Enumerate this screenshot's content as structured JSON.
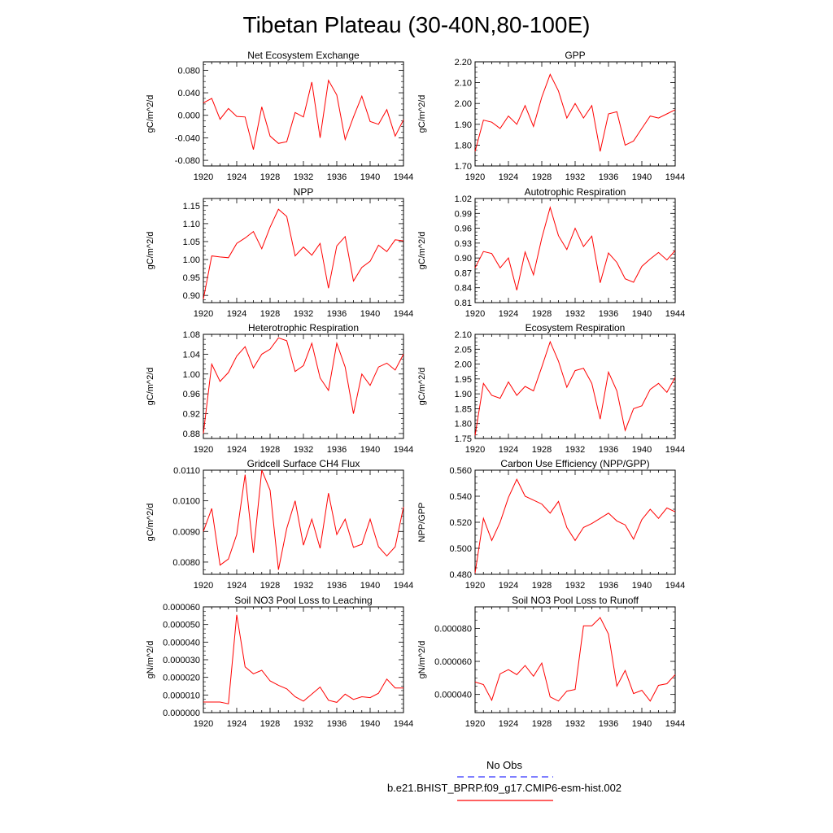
{
  "figure": {
    "title": "Tibetan Plateau (30-40N,80-100E)",
    "legend": [
      {
        "label": "No Obs",
        "color": "#3333ff",
        "dash": "dashed"
      },
      {
        "label": "b.e21.BHIST_BPRP.f09_g17.CMIP6-esm-hist.002",
        "color": "#ff0000",
        "dash": "solid"
      }
    ]
  },
  "chart_data": [
    {
      "type": "line",
      "title": "Net Ecosystem Exchange",
      "ylabel": "gC/m^2/d",
      "xlim": [
        1920,
        1944
      ],
      "ylim": [
        -0.09,
        0.095
      ],
      "xticks": [
        "1920",
        "1924",
        "1928",
        "1932",
        "1936",
        "1940",
        "1944"
      ],
      "yticks": [
        "-0.080",
        "-0.040",
        "0.000",
        "0.040",
        "0.080"
      ],
      "ytick_values": [
        -0.08,
        -0.04,
        0.0,
        0.04,
        0.08
      ],
      "x": [
        1920,
        1921,
        1922,
        1923,
        1924,
        1925,
        1926,
        1927,
        1928,
        1929,
        1930,
        1931,
        1932,
        1933,
        1934,
        1935,
        1936,
        1937,
        1938,
        1939,
        1940,
        1941,
        1942,
        1943,
        1944
      ],
      "series": [
        {
          "color": "#ff0000",
          "values": [
            0.022,
            0.03,
            -0.007,
            0.012,
            -0.002,
            -0.003,
            -0.061,
            0.015,
            -0.037,
            -0.05,
            -0.047,
            0.005,
            -0.003,
            0.059,
            -0.04,
            0.062,
            0.036,
            -0.043,
            -0.003,
            0.034,
            -0.011,
            -0.016,
            0.01,
            -0.037,
            -0.008
          ]
        }
      ]
    },
    {
      "type": "line",
      "title": "GPP",
      "ylabel": "gC/m^2/d",
      "xlim": [
        1920,
        1944
      ],
      "ylim": [
        1.7,
        2.2
      ],
      "xticks": [
        "1920",
        "1924",
        "1928",
        "1932",
        "1936",
        "1940",
        "1944"
      ],
      "yticks": [
        "1.70",
        "1.80",
        "1.90",
        "2.00",
        "2.10",
        "2.20"
      ],
      "ytick_values": [
        1.7,
        1.8,
        1.9,
        2.0,
        2.1,
        2.2
      ],
      "x": [
        1920,
        1921,
        1922,
        1923,
        1924,
        1925,
        1926,
        1927,
        1928,
        1929,
        1930,
        1931,
        1932,
        1933,
        1934,
        1935,
        1936,
        1937,
        1938,
        1939,
        1940,
        1941,
        1942,
        1943,
        1944
      ],
      "series": [
        {
          "color": "#ff0000",
          "values": [
            1.77,
            1.92,
            1.91,
            1.88,
            1.94,
            1.9,
            1.99,
            1.89,
            2.03,
            2.14,
            2.06,
            1.93,
            2.0,
            1.93,
            1.99,
            1.77,
            1.95,
            1.96,
            1.8,
            1.82,
            1.88,
            1.94,
            1.93,
            1.95,
            1.97
          ]
        }
      ]
    },
    {
      "type": "line",
      "title": "NPP",
      "ylabel": "gC/m^2/d",
      "xlim": [
        1920,
        1944
      ],
      "ylim": [
        0.88,
        1.17
      ],
      "xticks": [
        "1920",
        "1924",
        "1928",
        "1932",
        "1936",
        "1940",
        "1944"
      ],
      "yticks": [
        "0.90",
        "0.95",
        "1.00",
        "1.05",
        "1.10",
        "1.15"
      ],
      "ytick_values": [
        0.9,
        0.95,
        1.0,
        1.05,
        1.1,
        1.15
      ],
      "x": [
        1920,
        1921,
        1922,
        1923,
        1924,
        1925,
        1926,
        1927,
        1928,
        1929,
        1930,
        1931,
        1932,
        1933,
        1934,
        1935,
        1936,
        1937,
        1938,
        1939,
        1940,
        1941,
        1942,
        1943,
        1944
      ],
      "series": [
        {
          "color": "#ff0000",
          "values": [
            0.89,
            1.01,
            1.007,
            1.005,
            1.045,
            1.06,
            1.078,
            1.03,
            1.09,
            1.14,
            1.12,
            1.01,
            1.035,
            1.012,
            1.045,
            0.92,
            1.038,
            1.064,
            0.94,
            0.978,
            0.995,
            1.04,
            1.022,
            1.055,
            1.052
          ]
        }
      ]
    },
    {
      "type": "line",
      "title": "Autotrophic Respiration",
      "ylabel": "gC/m^2/d",
      "xlim": [
        1920,
        1944
      ],
      "ylim": [
        0.81,
        1.02
      ],
      "xticks": [
        "1920",
        "1924",
        "1928",
        "1932",
        "1936",
        "1940",
        "1944"
      ],
      "yticks": [
        "0.81",
        "0.84",
        "0.87",
        "0.90",
        "0.93",
        "0.96",
        "0.99",
        "1.02"
      ],
      "ytick_values": [
        0.81,
        0.84,
        0.87,
        0.9,
        0.93,
        0.96,
        0.99,
        1.02
      ],
      "x": [
        1920,
        1921,
        1922,
        1923,
        1924,
        1925,
        1926,
        1927,
        1928,
        1929,
        1930,
        1931,
        1932,
        1933,
        1934,
        1935,
        1936,
        1937,
        1938,
        1939,
        1940,
        1941,
        1942,
        1943,
        1944
      ],
      "series": [
        {
          "color": "#ff0000",
          "values": [
            0.88,
            0.913,
            0.909,
            0.88,
            0.9,
            0.835,
            0.912,
            0.866,
            0.94,
            1.002,
            0.945,
            0.917,
            0.96,
            0.923,
            0.944,
            0.85,
            0.91,
            0.891,
            0.858,
            0.851,
            0.883,
            0.898,
            0.911,
            0.896,
            0.915
          ]
        }
      ]
    },
    {
      "type": "line",
      "title": "Heterotrophic Respiration",
      "ylabel": "gC/m^2/d",
      "xlim": [
        1920,
        1944
      ],
      "ylim": [
        0.87,
        1.08
      ],
      "xticks": [
        "1920",
        "1924",
        "1928",
        "1932",
        "1936",
        "1940",
        "1944"
      ],
      "yticks": [
        "0.88",
        "0.92",
        "0.96",
        "1.00",
        "1.04",
        "1.08"
      ],
      "ytick_values": [
        0.88,
        0.92,
        0.96,
        1.0,
        1.04,
        1.08
      ],
      "x": [
        1920,
        1921,
        1922,
        1923,
        1924,
        1925,
        1926,
        1927,
        1928,
        1929,
        1930,
        1931,
        1932,
        1933,
        1934,
        1935,
        1936,
        1937,
        1938,
        1939,
        1940,
        1941,
        1942,
        1943,
        1944
      ],
      "series": [
        {
          "color": "#ff0000",
          "values": [
            0.88,
            1.02,
            0.985,
            1.003,
            1.036,
            1.055,
            1.012,
            1.04,
            1.05,
            1.073,
            1.067,
            1.005,
            1.017,
            1.062,
            0.992,
            0.967,
            1.062,
            1.014,
            0.92,
            1.0,
            0.977,
            1.014,
            1.022,
            1.008,
            1.04
          ]
        }
      ]
    },
    {
      "type": "line",
      "title": "Ecosystem Respiration",
      "ylabel": "gC/m^2/d",
      "xlim": [
        1920,
        1944
      ],
      "ylim": [
        1.75,
        2.1
      ],
      "xticks": [
        "1920",
        "1924",
        "1928",
        "1932",
        "1936",
        "1940",
        "1944"
      ],
      "yticks": [
        "1.75",
        "1.80",
        "1.85",
        "1.90",
        "1.95",
        "2.00",
        "2.05",
        "2.10"
      ],
      "ytick_values": [
        1.75,
        1.8,
        1.85,
        1.9,
        1.95,
        2.0,
        2.05,
        2.1
      ],
      "x": [
        1920,
        1921,
        1922,
        1923,
        1924,
        1925,
        1926,
        1927,
        1928,
        1929,
        1930,
        1931,
        1932,
        1933,
        1934,
        1935,
        1936,
        1937,
        1938,
        1939,
        1940,
        1941,
        1942,
        1943,
        1944
      ],
      "series": [
        {
          "color": "#ff0000",
          "values": [
            1.76,
            1.935,
            1.895,
            1.885,
            1.94,
            1.895,
            1.925,
            1.91,
            1.99,
            2.075,
            2.01,
            1.922,
            1.978,
            1.986,
            1.935,
            1.815,
            1.973,
            1.91,
            1.777,
            1.85,
            1.86,
            1.915,
            1.935,
            1.905,
            1.955
          ]
        }
      ]
    },
    {
      "type": "line",
      "title": "Gridcell Surface CH4 Flux",
      "ylabel": "gC/m^2/d",
      "xlim": [
        1920,
        1944
      ],
      "ylim": [
        0.0076,
        0.011
      ],
      "xticks": [
        "1920",
        "1924",
        "1928",
        "1932",
        "1936",
        "1940",
        "1944"
      ],
      "yticks": [
        "0.0080",
        "0.0090",
        "0.0100",
        "0.0110"
      ],
      "ytick_values": [
        0.008,
        0.009,
        0.01,
        0.011
      ],
      "x": [
        1920,
        1921,
        1922,
        1923,
        1924,
        1925,
        1926,
        1927,
        1928,
        1929,
        1930,
        1931,
        1932,
        1933,
        1934,
        1935,
        1936,
        1937,
        1938,
        1939,
        1940,
        1941,
        1942,
        1943,
        1944
      ],
      "series": [
        {
          "color": "#ff0000",
          "values": [
            0.009,
            0.00975,
            0.0079,
            0.0081,
            0.0089,
            0.01085,
            0.0083,
            0.011,
            0.01035,
            0.00775,
            0.0091,
            0.01,
            0.00855,
            0.0094,
            0.00845,
            0.01025,
            0.0089,
            0.0094,
            0.00848,
            0.00858,
            0.0094,
            0.0085,
            0.0082,
            0.0085,
            0.0098
          ]
        }
      ]
    },
    {
      "type": "line",
      "title": "Carbon Use Efficiency (NPP/GPP)",
      "ylabel": "NPP/GPP",
      "xlim": [
        1920,
        1944
      ],
      "ylim": [
        0.48,
        0.56
      ],
      "xticks": [
        "1920",
        "1924",
        "1928",
        "1932",
        "1936",
        "1940",
        "1944"
      ],
      "yticks": [
        "0.480",
        "0.500",
        "0.520",
        "0.540",
        "0.560"
      ],
      "ytick_values": [
        0.48,
        0.5,
        0.52,
        0.54,
        0.56
      ],
      "x": [
        1920,
        1921,
        1922,
        1923,
        1924,
        1925,
        1926,
        1927,
        1928,
        1929,
        1930,
        1931,
        1932,
        1933,
        1934,
        1935,
        1936,
        1937,
        1938,
        1939,
        1940,
        1941,
        1942,
        1943,
        1944
      ],
      "series": [
        {
          "color": "#ff0000",
          "values": [
            0.481,
            0.523,
            0.506,
            0.52,
            0.539,
            0.553,
            0.54,
            0.537,
            0.534,
            0.527,
            0.536,
            0.516,
            0.506,
            0.516,
            0.519,
            0.523,
            0.527,
            0.521,
            0.518,
            0.507,
            0.522,
            0.53,
            0.523,
            0.531,
            0.528
          ]
        }
      ]
    },
    {
      "type": "line",
      "title": "Soil NO3 Pool Loss to Leaching",
      "ylabel": "gN/m^2/d",
      "xlim": [
        1920,
        1944
      ],
      "ylim": [
        0.0,
        6e-05
      ],
      "xticks": [
        "1920",
        "1924",
        "1928",
        "1932",
        "1936",
        "1940",
        "1944"
      ],
      "yticks": [
        "0.000000",
        "0.000010",
        "0.000020",
        "0.000030",
        "0.000040",
        "0.000050",
        "0.000060"
      ],
      "ytick_values": [
        0.0,
        1e-05,
        2e-05,
        3e-05,
        4e-05,
        5e-05,
        6e-05
      ],
      "x": [
        1920,
        1921,
        1922,
        1923,
        1924,
        1925,
        1926,
        1927,
        1928,
        1929,
        1930,
        1931,
        1932,
        1933,
        1934,
        1935,
        1936,
        1937,
        1938,
        1939,
        1940,
        1941,
        1942,
        1943,
        1944
      ],
      "series": [
        {
          "color": "#ff0000",
          "values": [
            6e-06,
            6e-06,
            6e-06,
            5e-06,
            5.55e-05,
            2.6e-05,
            2.2e-05,
            2.4e-05,
            1.8e-05,
            1.55e-05,
            1.35e-05,
            9e-06,
            6.5e-06,
            1.05e-05,
            1.45e-05,
            7e-06,
            5.8e-06,
            1.05e-05,
            7.5e-06,
            9e-06,
            8.5e-06,
            1.1e-05,
            1.9e-05,
            1.4e-05,
            1.4e-05
          ]
        }
      ]
    },
    {
      "type": "line",
      "title": "Soil NO3 Pool Loss to Runoff",
      "ylabel": "gN/m^2/d",
      "xlim": [
        1920,
        1944
      ],
      "ylim": [
        2.9e-05,
        9.3e-05
      ],
      "xticks": [
        "1920",
        "1924",
        "1928",
        "1932",
        "1936",
        "1940",
        "1944"
      ],
      "yticks": [
        "0.000040",
        "0.000060",
        "0.000080"
      ],
      "ytick_values": [
        4e-05,
        6e-05,
        8e-05
      ],
      "x": [
        1920,
        1921,
        1922,
        1923,
        1924,
        1925,
        1926,
        1927,
        1928,
        1929,
        1930,
        1931,
        1932,
        1933,
        1934,
        1935,
        1936,
        1937,
        1938,
        1939,
        1940,
        1941,
        1942,
        1943,
        1944
      ],
      "series": [
        {
          "color": "#ff0000",
          "values": [
            4.75e-05,
            4.6e-05,
            3.65e-05,
            5.25e-05,
            5.5e-05,
            5.2e-05,
            5.75e-05,
            5.1e-05,
            5.9e-05,
            3.85e-05,
            3.6e-05,
            4.2e-05,
            4.3e-05,
            8.15e-05,
            8.15e-05,
            8.65e-05,
            7.65e-05,
            4.5e-05,
            5.45e-05,
            4.05e-05,
            4.25e-05,
            3.6e-05,
            4.55e-05,
            4.65e-05,
            5.2e-05
          ]
        }
      ]
    }
  ]
}
